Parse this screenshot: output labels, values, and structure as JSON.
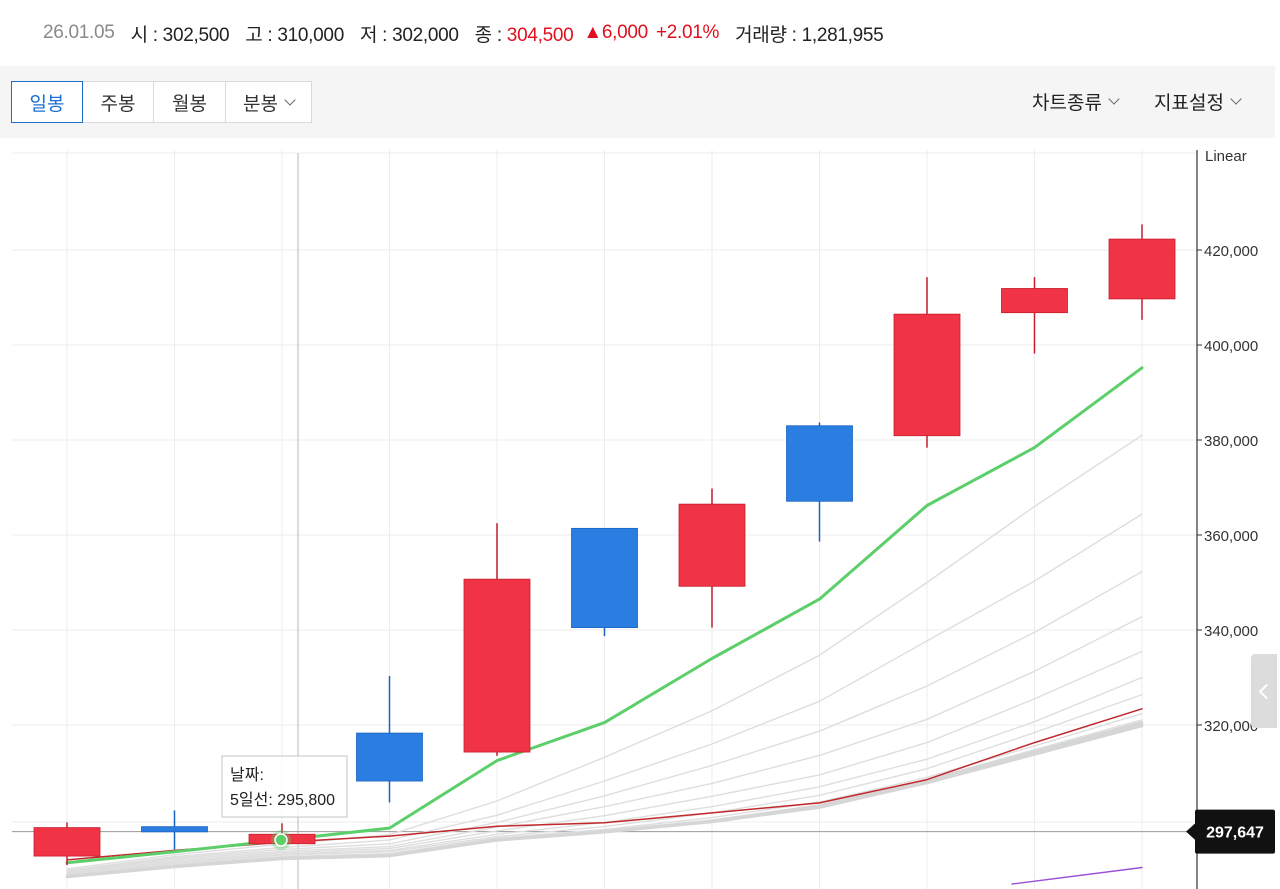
{
  "summary": {
    "date": "26.01.05",
    "open_label": "시 : 302,500",
    "high_label": "고 : 310,000",
    "low_label": "저 : 302,000",
    "close_prefix": "종 : ",
    "close_value": "304,500",
    "change": "▲6,000",
    "change_pct": "+2.01%",
    "volume_label": "거래량 : 1,281,955"
  },
  "period_tabs": [
    {
      "label": "일봉",
      "active": true
    },
    {
      "label": "주봉",
      "active": false
    },
    {
      "label": "월봉",
      "active": false
    },
    {
      "label": "분봉",
      "active": false,
      "dropdown": true
    }
  ],
  "menus": {
    "chart_type": "차트종류",
    "indicator_settings": "지표설정"
  },
  "colors": {
    "up": "#f03445",
    "down": "#2a7de1",
    "ma5": "#5ccf6b",
    "ma_other": "#dedede",
    "ma_red": "#c0282c",
    "ma_purple": "#9b4fd8",
    "grid": "#ececec",
    "crosshair": "#b8b8b8"
  },
  "chart_data": {
    "type": "candlestick",
    "scale_label": "Linear",
    "y_ticks": [
      "420,000",
      "400,000",
      "380,000",
      "360,000",
      "340,000",
      "320,000"
    ],
    "y_tick_values": [
      420000,
      400000,
      380000,
      360000,
      340000,
      320000
    ],
    "ylim": [
      287000,
      440500
    ],
    "current_price_label": "297,647",
    "current_price_value": 297647,
    "tooltip": {
      "date_label": "날짜:",
      "ma_label": "5일선: 295,800"
    },
    "candles": [
      {
        "o": 292400,
        "h": 299500,
        "l": 290500,
        "c": 298400
      },
      {
        "o": 298600,
        "h": 302000,
        "l": 293800,
        "c": 297500
      },
      {
        "o": 295000,
        "h": 299300,
        "l": 294500,
        "c": 297000
      },
      {
        "o": 318300,
        "h": 330300,
        "l": 303700,
        "c": 308200
      },
      {
        "o": 314300,
        "h": 362500,
        "l": 313500,
        "c": 350700
      },
      {
        "o": 361400,
        "h": 361400,
        "l": 338700,
        "c": 340500
      },
      {
        "o": 349200,
        "h": 369800,
        "l": 340500,
        "c": 366500
      },
      {
        "o": 383000,
        "h": 383700,
        "l": 358600,
        "c": 367100
      },
      {
        "o": 380900,
        "h": 414300,
        "l": 378400,
        "c": 406500
      },
      {
        "o": 406800,
        "h": 414300,
        "l": 398200,
        "c": 411900
      },
      {
        "o": 409700,
        "h": 425400,
        "l": 405300,
        "c": 422300
      }
    ],
    "series": [
      {
        "name": "5일선",
        "values": [
          291000,
          293300,
          295800,
          298300,
          312500,
          320500,
          334000,
          346500,
          366200,
          378400,
          395200
        ]
      },
      {
        "values": [
          289700,
          292700,
          294900,
          296900,
          304000,
          313200,
          323000,
          334700,
          350000,
          366000,
          381000
        ]
      },
      {
        "values": [
          289400,
          292300,
          294200,
          295800,
          301000,
          308200,
          316000,
          325000,
          337700,
          350300,
          364400
        ]
      },
      {
        "values": [
          289200,
          292000,
          293800,
          295000,
          299500,
          305100,
          311500,
          318700,
          328200,
          339500,
          352300
        ]
      },
      {
        "values": [
          289000,
          291700,
          293400,
          294400,
          298500,
          302800,
          307700,
          313600,
          321200,
          331300,
          342800
        ]
      },
      {
        "values": [
          288800,
          291400,
          293100,
          294000,
          297700,
          300900,
          305000,
          309500,
          316300,
          325500,
          335500
        ]
      },
      {
        "values": [
          288600,
          291100,
          292800,
          293600,
          297000,
          299500,
          302800,
          307000,
          312800,
          320700,
          330000
        ]
      },
      {
        "values": [
          288500,
          290900,
          292600,
          293300,
          296500,
          298600,
          301500,
          305200,
          310800,
          318400,
          326400
        ]
      },
      {
        "values": [
          288400,
          290600,
          292300,
          292900,
          296200,
          298000,
          300500,
          303800,
          309000,
          315600,
          322400
        ]
      },
      {
        "values": [
          288300,
          290400,
          292100,
          292700,
          296000,
          297800,
          300000,
          303200,
          308500,
          314800,
          321100
        ]
      },
      {
        "values": [
          288200,
          290300,
          292000,
          292600,
          295900,
          297600,
          299800,
          303000,
          308200,
          314400,
          320600
        ]
      },
      {
        "values": [
          288100,
          290200,
          291900,
          292500,
          295800,
          297500,
          299700,
          302800,
          308000,
          314100,
          320200
        ]
      },
      {
        "values": [
          288000,
          290100,
          291800,
          292400,
          295700,
          297400,
          299600,
          302600,
          307800,
          313800,
          319800
        ]
      },
      {
        "values": [
          291600,
          293600,
          295300,
          296600,
          298700,
          299400,
          301500,
          303600,
          308500,
          316300,
          323400
        ]
      },
      {
        "values": [
          null,
          null,
          null,
          null,
          null,
          null,
          null,
          null,
          null,
          286500,
          290000
        ]
      }
    ]
  }
}
